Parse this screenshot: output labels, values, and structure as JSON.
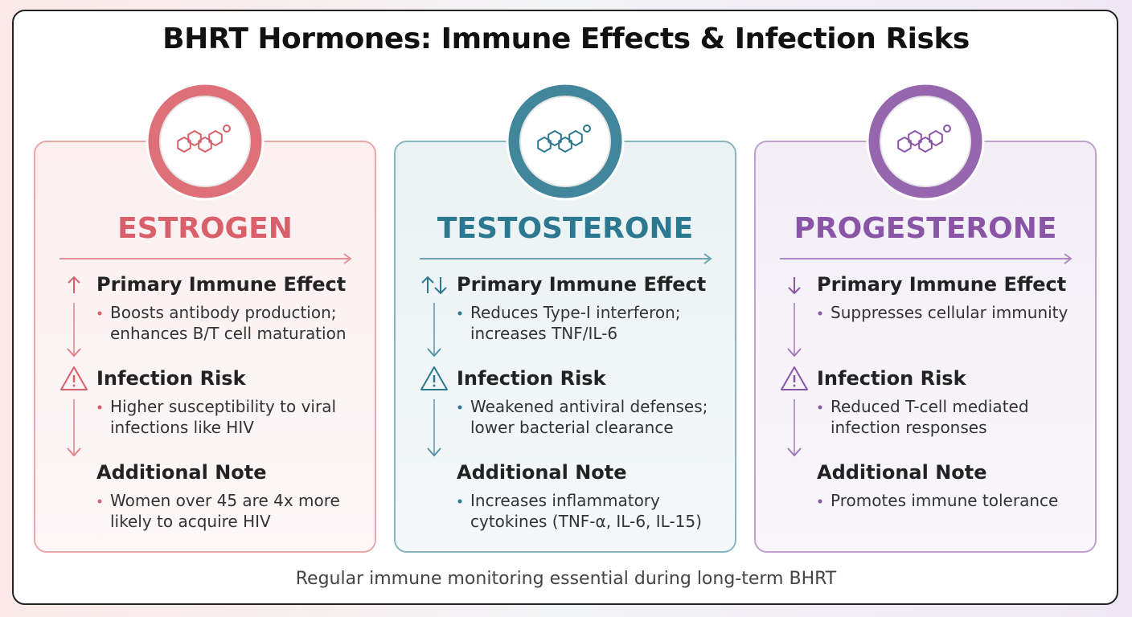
{
  "title": "BHRT Hormones: Immune Effects & Infection Risks",
  "cards": [
    {
      "name": "ESTROGEN",
      "color": "#d9606a",
      "sections": [
        {
          "heading": "Primary Immune Effect",
          "text": "Boosts antibody production; enhances B/T cell maturation"
        },
        {
          "heading": "Infection Risk",
          "text": "Higher susceptibility to viral infections like HIV"
        },
        {
          "heading": "Additional Note",
          "text": "Women over 45 are 4x more likely to acquire HIV"
        }
      ]
    },
    {
      "name": "TESTOSTERONE",
      "color": "#2d7891",
      "sections": [
        {
          "heading": "Primary Immune Effect",
          "text": "Reduces Type-I interferon; increases TNF/IL-6"
        },
        {
          "heading": "Infection Risk",
          "text": "Weakened antiviral defenses; lower bacterial clearance"
        },
        {
          "heading": "Additional Note",
          "text": "Increases inflammatory cytokines (TNF-α, IL-6, IL-15)"
        }
      ]
    },
    {
      "name": "PROGESTERONE",
      "color": "#8a55a6",
      "sections": [
        {
          "heading": "Primary Immune Effect",
          "text": "Suppresses cellular immunity"
        },
        {
          "heading": "Infection Risk",
          "text": "Reduced T-cell mediated infection responses"
        },
        {
          "heading": "Additional Note",
          "text": "Promotes immune tolerance"
        }
      ]
    }
  ],
  "footer": "Regular immune monitoring essential during long-term BHRT"
}
